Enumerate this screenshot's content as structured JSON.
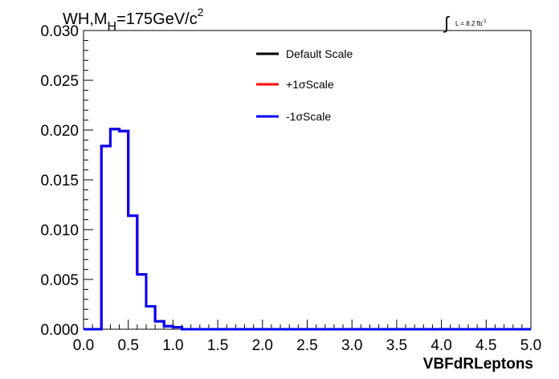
{
  "chart_data": {
    "type": "line",
    "title": "WH,M",
    "title_subscript": "H",
    "title_mass": "=175GeV/c",
    "title_superscript": "2",
    "lumi": "L = 8.2 fb",
    "lumi_superscript": "-1",
    "xlabel": "VBFdRLeptons",
    "ylabel": "",
    "xlim": [
      0.0,
      5.0
    ],
    "ylim": [
      0.0,
      0.03
    ],
    "x_ticks": [
      "0.0",
      "0.5",
      "1.0",
      "1.5",
      "2.0",
      "2.5",
      "3.0",
      "3.5",
      "4.0",
      "4.5",
      "5.0"
    ],
    "y_ticks": [
      "0.000",
      "0.005",
      "0.010",
      "0.015",
      "0.020",
      "0.025",
      "0.030"
    ],
    "bin_width": 0.1,
    "bin_edges_start": 0.0,
    "grid": false,
    "legend_position": "top-center",
    "series": [
      {
        "name": "Default Scale",
        "color": "#000000",
        "values": [
          0,
          0,
          0.0184,
          0.0201,
          0.0199,
          0.0114,
          0.0055,
          0.0023,
          0.0008,
          0.0003,
          0.0002,
          0,
          0,
          0,
          0,
          0,
          0,
          0,
          0,
          0,
          0,
          0,
          0,
          0,
          0,
          0,
          0,
          0,
          0,
          0,
          0,
          0,
          0,
          0,
          0,
          0,
          0,
          0,
          0,
          0,
          0,
          0,
          0,
          0,
          0,
          0,
          0,
          0,
          0,
          0
        ]
      },
      {
        "name": "+1σScale",
        "color": "#ff0000",
        "values": [
          0,
          0,
          0.0184,
          0.0201,
          0.0199,
          0.0114,
          0.0055,
          0.0023,
          0.0008,
          0.0003,
          0.0002,
          0,
          0,
          0,
          0,
          0,
          0,
          0,
          0,
          0,
          0,
          0,
          0,
          0,
          0,
          0,
          0,
          0,
          0,
          0,
          0,
          0,
          0,
          0,
          0,
          0,
          0,
          0,
          0,
          0,
          0,
          0,
          0,
          0,
          0,
          0,
          0,
          0,
          0,
          0
        ]
      },
      {
        "name": "-1σScale",
        "color": "#0000ff",
        "values": [
          0,
          0,
          0.0184,
          0.0201,
          0.0199,
          0.0114,
          0.0055,
          0.0023,
          0.0008,
          0.0003,
          0.0002,
          0,
          0,
          0,
          0,
          0,
          0,
          0,
          0,
          0,
          0,
          0,
          0,
          0,
          0,
          0,
          0,
          0,
          0,
          0,
          0,
          0,
          0,
          0,
          0,
          0,
          0,
          0,
          0,
          0,
          0,
          0,
          0,
          0,
          0,
          0,
          0,
          0,
          0,
          0
        ]
      }
    ]
  }
}
